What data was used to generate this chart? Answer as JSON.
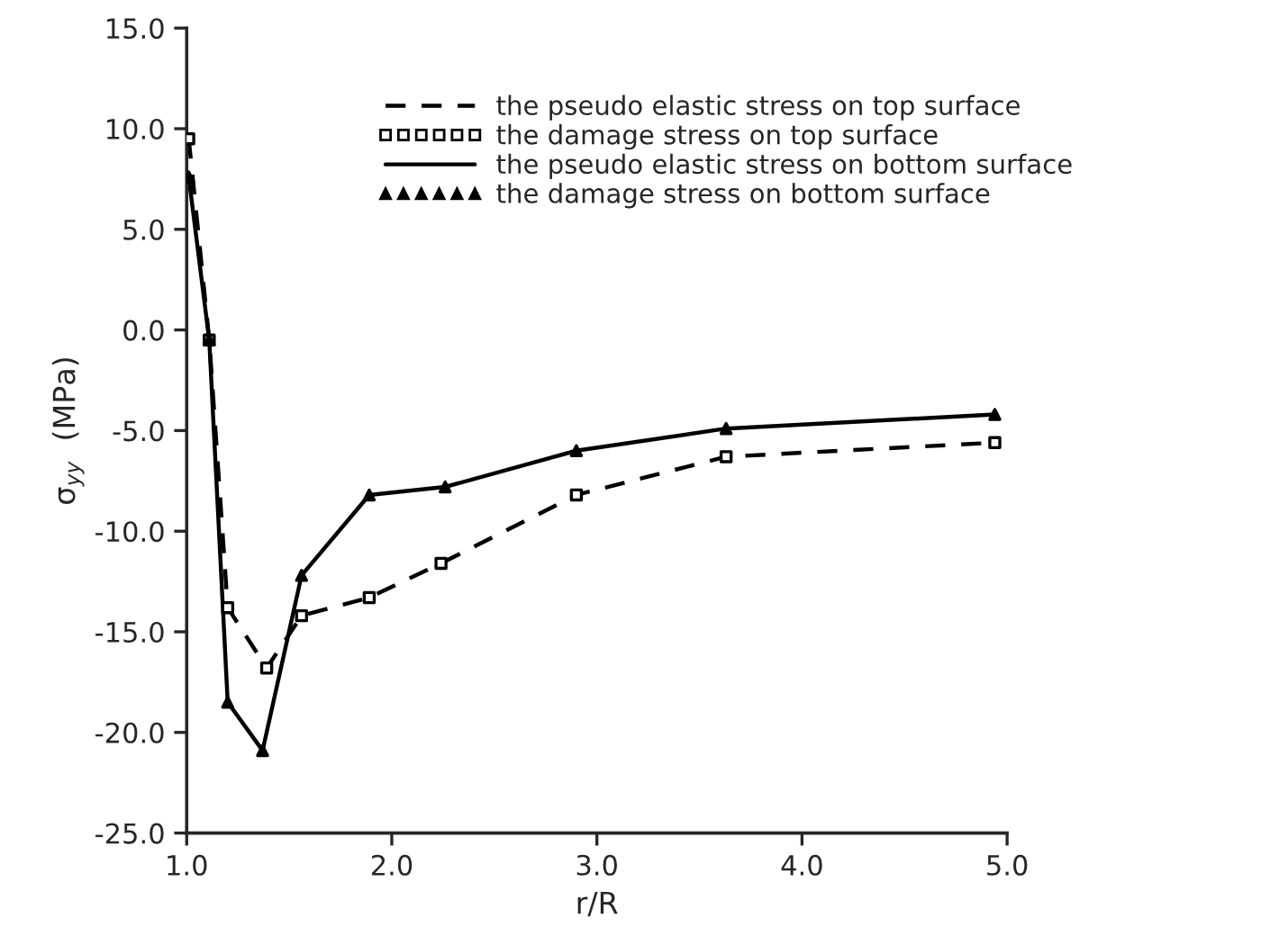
{
  "chart_data": {
    "type": "line",
    "xlabel": "r/R",
    "ylabel": "σ$_{yy}$  (MPa)",
    "xlim": [
      1.0,
      5.0
    ],
    "ylim": [
      -25.0,
      15.0
    ],
    "xticks": [
      {
        "value": 1.0,
        "label": "1.0"
      },
      {
        "value": 2.0,
        "label": "2.0"
      },
      {
        "value": 3.0,
        "label": "3.0"
      },
      {
        "value": 4.0,
        "label": "4.0"
      },
      {
        "value": 5.0,
        "label": "5.0"
      }
    ],
    "yticks": [
      {
        "value": -25.0,
        "label": "-25.0"
      },
      {
        "value": -20.0,
        "label": "-20.0"
      },
      {
        "value": -15.0,
        "label": "-15.0"
      },
      {
        "value": -10.0,
        "label": "-10.0"
      },
      {
        "value": -5.0,
        "label": "-5.0"
      },
      {
        "value": 0.0,
        "label": "0.0"
      },
      {
        "value": 5.0,
        "label": "5.0"
      },
      {
        "value": 10.0,
        "label": "10.0"
      },
      {
        "value": 15.0,
        "label": "15.0"
      }
    ],
    "grid": false,
    "legend": "top right",
    "series": [
      {
        "name": "the pseudo elastic stress on top surface",
        "line_style": "dashed",
        "color": "#000000",
        "x": [
          1.01,
          1.11,
          1.2,
          1.39,
          1.56,
          1.89,
          2.24,
          2.9,
          3.63,
          4.94
        ],
        "values": [
          9.5,
          -0.5,
          -13.8,
          -16.8,
          -14.2,
          -13.3,
          -11.6,
          -8.2,
          -6.3,
          -5.6
        ]
      },
      {
        "name": "the damage stress on top surface",
        "type": "scatter",
        "marker": "square",
        "color": "#000000",
        "x": [
          1.01,
          1.11,
          1.2,
          1.39,
          1.56,
          1.89,
          2.24,
          2.9,
          3.63,
          4.94
        ],
        "values": [
          9.5,
          -0.5,
          -13.8,
          -16.8,
          -14.2,
          -13.3,
          -11.6,
          -8.2,
          -6.3,
          -5.6
        ]
      },
      {
        "name": "the pseudo elastic stress on bottom surface",
        "line_style": "solid",
        "color": "#000000",
        "x": [
          1.01,
          1.11,
          1.2,
          1.37,
          1.56,
          1.89,
          2.26,
          2.9,
          3.63,
          4.94
        ],
        "values": [
          7.6,
          -0.5,
          -18.5,
          -20.9,
          -12.2,
          -8.2,
          -7.8,
          -6.0,
          -4.9,
          -4.2
        ]
      },
      {
        "name": "the damage stress on bottom surface",
        "type": "scatter",
        "marker": "triangle",
        "color": "#000000",
        "x": [
          1.01,
          1.11,
          1.2,
          1.37,
          1.56,
          1.89,
          2.26,
          2.9,
          3.63,
          4.94
        ],
        "values": [
          7.6,
          -0.5,
          -18.5,
          -20.9,
          -12.2,
          -8.2,
          -7.8,
          -6.0,
          -4.9,
          -4.2
        ]
      }
    ]
  }
}
